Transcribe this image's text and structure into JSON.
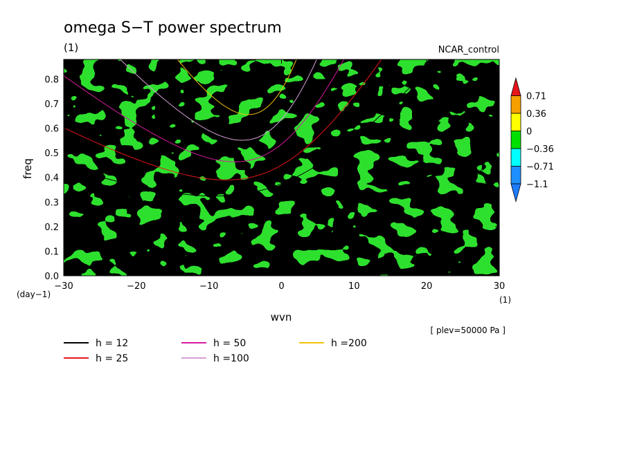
{
  "chart_data": {
    "type": "heatmap",
    "title": "omega S−T power spectrum",
    "subtitle_left": "(1)",
    "subtitle_right": "NCAR_control",
    "xlabel": "wvn",
    "ylabel": "freq",
    "x_unit": "(1)",
    "y_unit": "(day−1)",
    "xlim": [
      -30,
      30
    ],
    "ylim": [
      0,
      0.88
    ],
    "xticks": [
      "−30",
      "−20",
      "−10",
      "0",
      "10",
      "20",
      "30"
    ],
    "yticks": [
      "0.0",
      "0.1",
      "0.2",
      "0.3",
      "0.4",
      "0.5",
      "0.6",
      "0.7",
      "0.8"
    ],
    "colorbar": {
      "labels": [
        "0.71",
        "0.36",
        "0",
        "−0.36",
        "−0.71",
        "−1.1"
      ],
      "colors": [
        "#e8141c",
        "#f5a000",
        "#ffff00",
        "#00e000",
        "#00ffff",
        "#1e90ff",
        "#1e7cff"
      ]
    },
    "field_colors": {
      "high": "#ffff00",
      "low": "#2ee02e",
      "rare_pos": "#f5a000",
      "rare_neg": "#1e90ff"
    },
    "annotation": "[ plev=50000 Pa ]",
    "series": [
      {
        "name": "h = 12",
        "color": "#000000",
        "h": 12
      },
      {
        "name": "h = 25",
        "color": "#e8141c",
        "h": 25
      },
      {
        "name": "h = 50",
        "color": "#d81ba0",
        "h": 50
      },
      {
        "name": "h =100",
        "color": "#d6a0d6",
        "h": 100
      },
      {
        "name": "h =200",
        "color": "#f2c20c",
        "h": 200
      }
    ]
  }
}
